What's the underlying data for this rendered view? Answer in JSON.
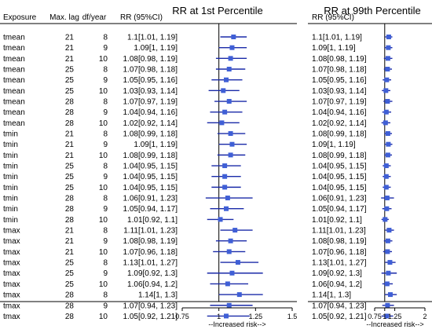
{
  "chart_data": [
    {
      "type": "forest",
      "title": "RR at 1st Percentile",
      "subtitle": "RR (95%CI)",
      "xlabel": "--Increased risk-->",
      "xlim": [
        0.75,
        1.5
      ],
      "xticks": [
        0.75,
        1,
        1.25,
        1.5
      ],
      "xtick_labels": [
        "0.75",
        "1",
        "1.25",
        "1.5"
      ],
      "reference_line": 1,
      "marker_color": "#3f5fd6",
      "line_color": "#1a2aa8",
      "columns": {
        "exposure": "Exposure",
        "lag": "Max. lag",
        "df": "df/year"
      },
      "rows": [
        {
          "exposure": "tmean",
          "lag": "21",
          "df": "8",
          "rr": 1.1,
          "lo": 1.01,
          "hi": 1.19,
          "label": "1.1[1.01, 1.19]"
        },
        {
          "exposure": "tmean",
          "lag": "21",
          "df": "9",
          "rr": 1.09,
          "lo": 1,
          "hi": 1.19,
          "label": "1.09[1, 1.19]"
        },
        {
          "exposure": "tmean",
          "lag": "21",
          "df": "10",
          "rr": 1.08,
          "lo": 0.98,
          "hi": 1.19,
          "label": "1.08[0.98, 1.19]"
        },
        {
          "exposure": "tmean",
          "lag": "25",
          "df": "8",
          "rr": 1.07,
          "lo": 0.98,
          "hi": 1.18,
          "label": "1.07[0.98, 1.18]"
        },
        {
          "exposure": "tmean",
          "lag": "25",
          "df": "9",
          "rr": 1.05,
          "lo": 0.95,
          "hi": 1.16,
          "label": "1.05[0.95, 1.16]"
        },
        {
          "exposure": "tmean",
          "lag": "25",
          "df": "10",
          "rr": 1.03,
          "lo": 0.93,
          "hi": 1.14,
          "label": "1.03[0.93, 1.14]"
        },
        {
          "exposure": "tmean",
          "lag": "28",
          "df": "8",
          "rr": 1.07,
          "lo": 0.97,
          "hi": 1.19,
          "label": "1.07[0.97, 1.19]"
        },
        {
          "exposure": "tmean",
          "lag": "28",
          "df": "9",
          "rr": 1.04,
          "lo": 0.94,
          "hi": 1.16,
          "label": "1.04[0.94, 1.16]"
        },
        {
          "exposure": "tmean",
          "lag": "28",
          "df": "10",
          "rr": 1.02,
          "lo": 0.92,
          "hi": 1.14,
          "label": "1.02[0.92, 1.14]"
        },
        {
          "exposure": "tmin",
          "lag": "21",
          "df": "8",
          "rr": 1.08,
          "lo": 0.99,
          "hi": 1.18,
          "label": "1.08[0.99, 1.18]"
        },
        {
          "exposure": "tmin",
          "lag": "21",
          "df": "9",
          "rr": 1.09,
          "lo": 1,
          "hi": 1.19,
          "label": "1.09[1, 1.19]"
        },
        {
          "exposure": "tmin",
          "lag": "21",
          "df": "10",
          "rr": 1.08,
          "lo": 0.99,
          "hi": 1.18,
          "label": "1.08[0.99, 1.18]"
        },
        {
          "exposure": "tmin",
          "lag": "25",
          "df": "8",
          "rr": 1.04,
          "lo": 0.95,
          "hi": 1.15,
          "label": "1.04[0.95, 1.15]"
        },
        {
          "exposure": "tmin",
          "lag": "25",
          "df": "9",
          "rr": 1.04,
          "lo": 0.95,
          "hi": 1.15,
          "label": "1.04[0.95, 1.15]"
        },
        {
          "exposure": "tmin",
          "lag": "25",
          "df": "10",
          "rr": 1.04,
          "lo": 0.95,
          "hi": 1.15,
          "label": "1.04[0.95, 1.15]"
        },
        {
          "exposure": "tmin",
          "lag": "28",
          "df": "8",
          "rr": 1.06,
          "lo": 0.91,
          "hi": 1.23,
          "label": "1.06[0.91, 1.23]"
        },
        {
          "exposure": "tmin",
          "lag": "28",
          "df": "9",
          "rr": 1.05,
          "lo": 0.94,
          "hi": 1.17,
          "label": "1.05[0.94, 1.17]"
        },
        {
          "exposure": "tmin",
          "lag": "28",
          "df": "10",
          "rr": 1.01,
          "lo": 0.92,
          "hi": 1.1,
          "label": "1.01[0.92, 1.1]"
        },
        {
          "exposure": "tmax",
          "lag": "21",
          "df": "8",
          "rr": 1.11,
          "lo": 1.01,
          "hi": 1.23,
          "label": "1.11[1.01, 1.23]"
        },
        {
          "exposure": "tmax",
          "lag": "21",
          "df": "9",
          "rr": 1.08,
          "lo": 0.98,
          "hi": 1.19,
          "label": "1.08[0.98, 1.19]"
        },
        {
          "exposure": "tmax",
          "lag": "21",
          "df": "10",
          "rr": 1.07,
          "lo": 0.96,
          "hi": 1.18,
          "label": "1.07[0.96, 1.18]"
        },
        {
          "exposure": "tmax",
          "lag": "25",
          "df": "8",
          "rr": 1.13,
          "lo": 1.01,
          "hi": 1.27,
          "label": "1.13[1.01, 1.27]"
        },
        {
          "exposure": "tmax",
          "lag": "25",
          "df": "9",
          "rr": 1.09,
          "lo": 0.92,
          "hi": 1.3,
          "label": "1.09[0.92, 1.3]"
        },
        {
          "exposure": "tmax",
          "lag": "25",
          "df": "10",
          "rr": 1.06,
          "lo": 0.94,
          "hi": 1.2,
          "label": "1.06[0.94, 1.2]"
        },
        {
          "exposure": "tmax",
          "lag": "28",
          "df": "8",
          "rr": 1.14,
          "lo": 1,
          "hi": 1.3,
          "label": "1.14[1, 1.3]"
        },
        {
          "exposure": "tmax",
          "lag": "28",
          "df": "9",
          "rr": 1.07,
          "lo": 0.94,
          "hi": 1.23,
          "label": "1.07[0.94, 1.23]"
        },
        {
          "exposure": "tmax",
          "lag": "28",
          "df": "10",
          "rr": 1.05,
          "lo": 0.92,
          "hi": 1.21,
          "label": "1.05[0.92, 1.21]"
        }
      ]
    },
    {
      "type": "forest",
      "title": "RR at 99th Percentile",
      "subtitle": "RR (95%CI)",
      "xlabel": "--Increased risk-->",
      "xlim": [
        0.75,
        2
      ],
      "xticks": [
        0.75,
        1,
        1.25,
        2
      ],
      "xtick_labels": [
        "0.75",
        "1",
        "1.25",
        "2"
      ],
      "reference_line": 1,
      "marker_color": "#3f5fd6",
      "line_color": "#1a2aa8",
      "rows": [
        {
          "rr": 1.1,
          "lo": 1.01,
          "hi": 1.19,
          "label": "1.1[1.01, 1.19]"
        },
        {
          "rr": 1.09,
          "lo": 1,
          "hi": 1.19,
          "label": "1.09[1, 1.19]"
        },
        {
          "rr": 1.08,
          "lo": 0.98,
          "hi": 1.19,
          "label": "1.08[0.98, 1.19]"
        },
        {
          "rr": 1.07,
          "lo": 0.98,
          "hi": 1.18,
          "label": "1.07[0.98, 1.18]"
        },
        {
          "rr": 1.05,
          "lo": 0.95,
          "hi": 1.16,
          "label": "1.05[0.95, 1.16]"
        },
        {
          "rr": 1.03,
          "lo": 0.93,
          "hi": 1.14,
          "label": "1.03[0.93, 1.14]"
        },
        {
          "rr": 1.07,
          "lo": 0.97,
          "hi": 1.19,
          "label": "1.07[0.97, 1.19]"
        },
        {
          "rr": 1.04,
          "lo": 0.94,
          "hi": 1.16,
          "label": "1.04[0.94, 1.16]"
        },
        {
          "rr": 1.02,
          "lo": 0.92,
          "hi": 1.14,
          "label": "1.02[0.92, 1.14]"
        },
        {
          "rr": 1.08,
          "lo": 0.99,
          "hi": 1.18,
          "label": "1.08[0.99, 1.18]"
        },
        {
          "rr": 1.09,
          "lo": 1,
          "hi": 1.19,
          "label": "1.09[1, 1.19]"
        },
        {
          "rr": 1.08,
          "lo": 0.99,
          "hi": 1.18,
          "label": "1.08[0.99, 1.18]"
        },
        {
          "rr": 1.04,
          "lo": 0.95,
          "hi": 1.15,
          "label": "1.04[0.95, 1.15]"
        },
        {
          "rr": 1.04,
          "lo": 0.95,
          "hi": 1.15,
          "label": "1.04[0.95, 1.15]"
        },
        {
          "rr": 1.04,
          "lo": 0.95,
          "hi": 1.15,
          "label": "1.04[0.95, 1.15]"
        },
        {
          "rr": 1.06,
          "lo": 0.91,
          "hi": 1.23,
          "label": "1.06[0.91, 1.23]"
        },
        {
          "rr": 1.05,
          "lo": 0.94,
          "hi": 1.17,
          "label": "1.05[0.94, 1.17]"
        },
        {
          "rr": 1.01,
          "lo": 0.92,
          "hi": 1.1,
          "label": "1.01[0.92, 1.1]"
        },
        {
          "rr": 1.11,
          "lo": 1.01,
          "hi": 1.23,
          "label": "1.11[1.01, 1.23]"
        },
        {
          "rr": 1.08,
          "lo": 0.98,
          "hi": 1.19,
          "label": "1.08[0.98, 1.19]"
        },
        {
          "rr": 1.07,
          "lo": 0.96,
          "hi": 1.18,
          "label": "1.07[0.96, 1.18]"
        },
        {
          "rr": 1.13,
          "lo": 1.01,
          "hi": 1.27,
          "label": "1.13[1.01, 1.27]"
        },
        {
          "rr": 1.09,
          "lo": 0.92,
          "hi": 1.3,
          "label": "1.09[0.92, 1.3]"
        },
        {
          "rr": 1.06,
          "lo": 0.94,
          "hi": 1.2,
          "label": "1.06[0.94, 1.2]"
        },
        {
          "rr": 1.14,
          "lo": 1,
          "hi": 1.3,
          "label": "1.14[1, 1.3]"
        },
        {
          "rr": 1.07,
          "lo": 0.94,
          "hi": 1.23,
          "label": "1.07[0.94, 1.23]"
        },
        {
          "rr": 1.05,
          "lo": 0.92,
          "hi": 1.21,
          "label": "1.05[0.92, 1.21]"
        }
      ]
    }
  ]
}
